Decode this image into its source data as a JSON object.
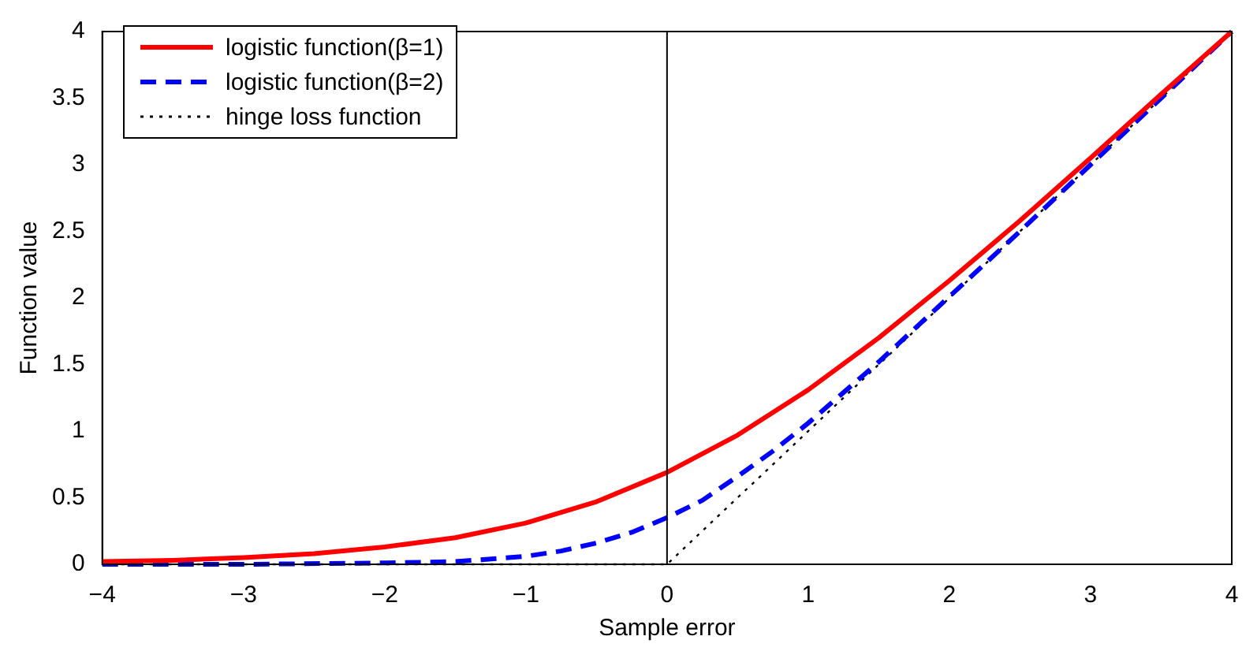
{
  "chart_data": {
    "type": "line",
    "xlabel": "Sample error",
    "ylabel": "Function value",
    "xlim": [
      -4,
      4
    ],
    "ylim": [
      0,
      4
    ],
    "xticks": [
      -4,
      -3,
      -2,
      -1,
      0,
      1,
      2,
      3,
      4
    ],
    "yticks": [
      0,
      0.5,
      1,
      1.5,
      2,
      2.5,
      3,
      3.5,
      4
    ],
    "grid": false,
    "legend": "top left",
    "marker": "none",
    "ref_lines": [
      {
        "axis": "x",
        "value": 0,
        "color": "#000000"
      }
    ],
    "series": [
      {
        "name": "logistic function(β=1)",
        "color": "#ff0000",
        "line_style": "solid",
        "x": [
          -4,
          -3.5,
          -3,
          -2.5,
          -2,
          -1.5,
          -1,
          -0.5,
          0,
          0.5,
          1,
          1.5,
          2,
          2.5,
          3,
          3.5,
          4
        ],
        "values": [
          0.02,
          0.03,
          0.05,
          0.08,
          0.13,
          0.2,
          0.31,
          0.47,
          0.69,
          0.97,
          1.31,
          1.7,
          2.13,
          2.58,
          3.05,
          3.53,
          4.0
        ]
      },
      {
        "name": "logistic function(β=2)",
        "color": "#0000ff",
        "line_style": "dashed",
        "x": [
          -4,
          -3,
          -2,
          -1.5,
          -1,
          -0.75,
          -0.5,
          -0.25,
          0,
          0.25,
          0.5,
          0.75,
          1,
          1.5,
          2,
          2.5,
          3,
          3.5,
          4
        ],
        "values": [
          0,
          0,
          0.01,
          0.02,
          0.06,
          0.1,
          0.16,
          0.24,
          0.35,
          0.48,
          0.66,
          0.85,
          1.06,
          1.52,
          2.01,
          2.5,
          3.0,
          3.5,
          4.0
        ]
      },
      {
        "name": "hinge loss function",
        "color": "#000000",
        "line_style": "dotted",
        "x": [
          -4,
          0,
          4
        ],
        "values": [
          0,
          0,
          4
        ]
      }
    ]
  }
}
